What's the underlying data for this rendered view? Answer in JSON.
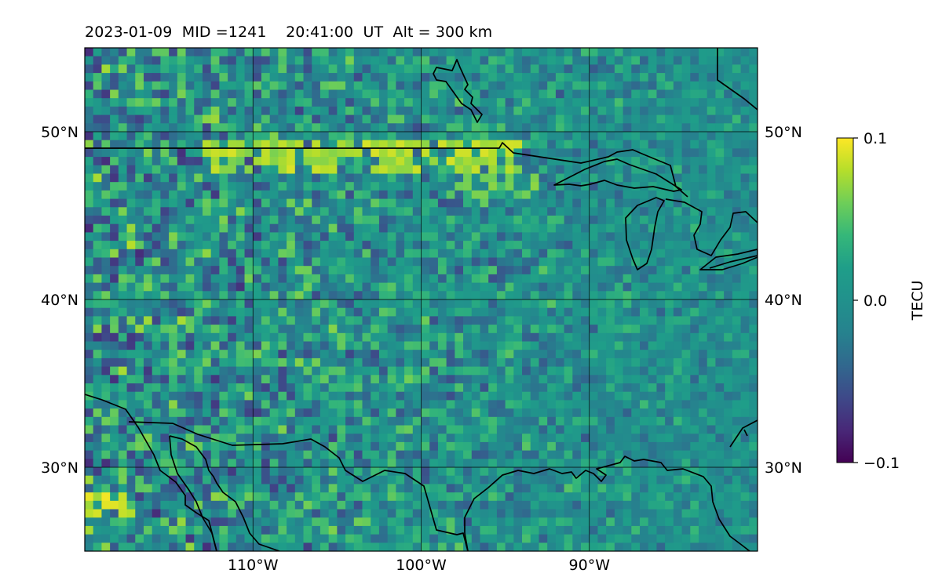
{
  "title": "2023-01-09  MID =1241    20:41:00  UT  Alt = 300 km",
  "map": {
    "projection": "PlateCarree",
    "lon_range": [
      -120,
      -80
    ],
    "lat_range": [
      25,
      55
    ],
    "gridlines": true,
    "lon_ticks": [
      {
        "value": -110,
        "label": "110°W"
      },
      {
        "value": -100,
        "label": "100°W"
      },
      {
        "value": -90,
        "label": "90°W"
      }
    ],
    "lat_ticks": [
      {
        "value": 50,
        "label": "50°N"
      },
      {
        "value": 40,
        "label": "40°N"
      },
      {
        "value": 30,
        "label": "30°N"
      }
    ],
    "field": {
      "name": "TEC perturbation",
      "colormap": "viridis",
      "cell_deg": 0.5,
      "vmin": -0.1,
      "vmax": 0.1,
      "features": [
        {
          "note": "bright band near US-Canada border",
          "lon_range": [
            -113,
            -94
          ],
          "lat_range": [
            48,
            50
          ],
          "value": 0.09
        },
        {
          "note": "bright patch SW corner",
          "lon_range": [
            -120,
            -117
          ],
          "lat_range": [
            27.5,
            29
          ],
          "value": 0.1
        },
        {
          "note": "bright patch",
          "lon_range": [
            -98,
            -93
          ],
          "lat_range": [
            46.5,
            48
          ],
          "value": 0.07
        }
      ]
    }
  },
  "colorbar": {
    "label": "TECU",
    "min": -0.1,
    "max": 0.1,
    "ticks": [
      {
        "value": 0.1,
        "label": "0.1"
      },
      {
        "value": 0.0,
        "label": "0.0"
      },
      {
        "value": -0.1,
        "label": "−0.1"
      }
    ]
  },
  "colors": {
    "viridis_low": "#440154",
    "viridis_mid": "#21918c",
    "viridis_high": "#fde725",
    "coastline": "#000000"
  }
}
